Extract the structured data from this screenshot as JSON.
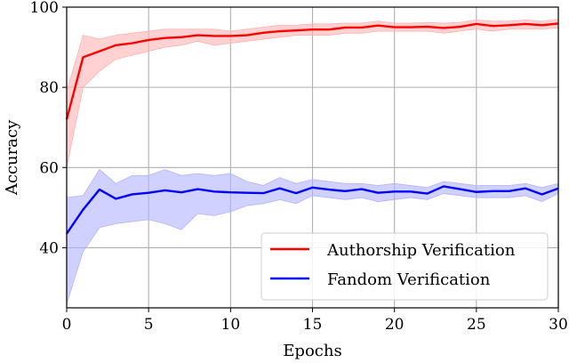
{
  "chart_data": {
    "type": "line",
    "xlabel": "Epochs",
    "ylabel": "Accuracy",
    "xlim": [
      0,
      30
    ],
    "ylim": [
      25,
      100
    ],
    "xticks": [
      0,
      5,
      10,
      15,
      20,
      25,
      30
    ],
    "yticks": [
      40,
      60,
      80,
      100
    ],
    "grid": true,
    "legend_position": "bottom-right",
    "x": [
      0,
      1,
      2,
      3,
      4,
      5,
      6,
      7,
      8,
      9,
      10,
      11,
      12,
      13,
      14,
      15,
      16,
      17,
      18,
      19,
      20,
      21,
      22,
      23,
      24,
      25,
      26,
      27,
      28,
      29,
      30
    ],
    "series": [
      {
        "name": "Authorship Verification",
        "color": "#ff0000",
        "band_color": "#ffb3b3",
        "values": [
          72.0,
          87.5,
          89.0,
          90.5,
          91.0,
          91.8,
          92.3,
          92.5,
          93.0,
          92.8,
          92.8,
          93.0,
          93.6,
          94.0,
          94.2,
          94.4,
          94.4,
          94.9,
          94.9,
          95.4,
          95.0,
          95.0,
          95.1,
          94.8,
          95.1,
          95.8,
          95.3,
          95.5,
          95.8,
          95.5,
          95.9
        ],
        "upper": [
          79.0,
          93.0,
          92.0,
          93.0,
          93.5,
          94.0,
          94.5,
          94.5,
          94.5,
          94.5,
          94.0,
          94.5,
          95.0,
          95.5,
          95.5,
          95.8,
          95.8,
          96.0,
          96.0,
          96.5,
          96.0,
          96.0,
          96.2,
          96.0,
          96.2,
          96.8,
          96.5,
          96.5,
          96.8,
          96.5,
          97.0
        ],
        "lower": [
          60.0,
          80.0,
          84.0,
          87.0,
          88.0,
          89.0,
          90.0,
          90.5,
          91.5,
          90.5,
          91.0,
          91.5,
          92.0,
          92.5,
          93.0,
          93.0,
          93.0,
          93.5,
          93.5,
          94.0,
          94.0,
          94.0,
          94.0,
          93.5,
          94.0,
          94.5,
          94.0,
          94.5,
          94.5,
          94.5,
          94.8
        ]
      },
      {
        "name": "Fandom Verification",
        "color": "#0000ff",
        "band_color": "#b3b3ff",
        "values": [
          43.5,
          49.5,
          54.5,
          52.2,
          53.3,
          53.7,
          54.3,
          53.8,
          54.6,
          54.0,
          53.8,
          53.7,
          53.6,
          54.8,
          53.6,
          55.0,
          54.5,
          54.1,
          54.6,
          53.7,
          54.0,
          54.0,
          53.5,
          55.3,
          54.6,
          53.9,
          54.1,
          54.1,
          54.8,
          53.3,
          54.8
        ],
        "upper": [
          52.5,
          53.0,
          59.5,
          56.0,
          58.0,
          58.0,
          59.5,
          58.0,
          58.5,
          58.0,
          58.5,
          56.5,
          55.5,
          57.5,
          56.0,
          57.0,
          56.5,
          56.0,
          56.0,
          55.5,
          56.0,
          55.5,
          55.0,
          56.5,
          56.0,
          55.5,
          55.5,
          55.5,
          56.0,
          55.0,
          56.0
        ],
        "lower": [
          26.0,
          39.0,
          45.0,
          46.0,
          46.5,
          47.0,
          46.0,
          44.5,
          48.5,
          48.0,
          49.0,
          50.5,
          51.0,
          52.0,
          51.0,
          53.0,
          52.5,
          52.0,
          52.5,
          51.5,
          52.0,
          52.5,
          52.0,
          53.5,
          53.0,
          52.5,
          52.5,
          52.5,
          53.0,
          51.5,
          53.5
        ]
      }
    ]
  }
}
